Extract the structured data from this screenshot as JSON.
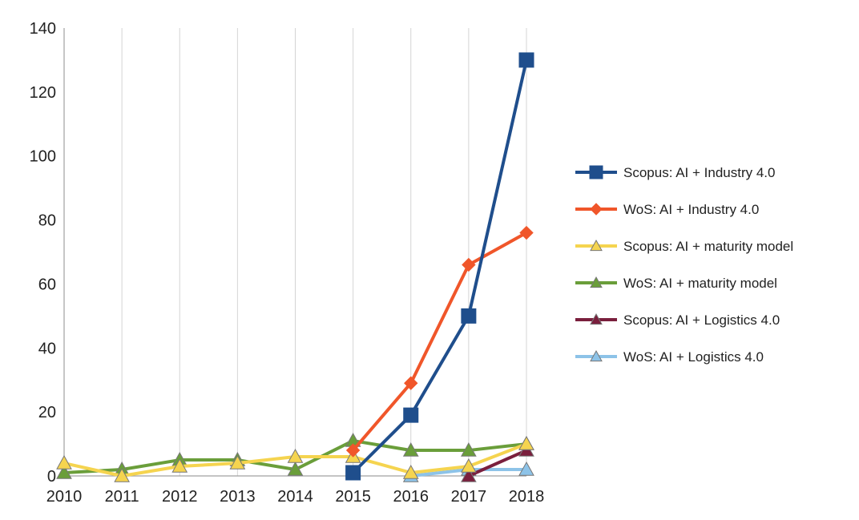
{
  "chart_data": {
    "type": "line",
    "title": "",
    "xlabel": "",
    "ylabel": "",
    "x": [
      "2010",
      "2011",
      "2012",
      "2013",
      "2014",
      "2015",
      "2016",
      "2017",
      "2018"
    ],
    "ylim": [
      0,
      140
    ],
    "yticks": [
      0,
      20,
      40,
      60,
      80,
      100,
      120,
      140
    ],
    "grid": {
      "vertical": true,
      "horizontal": false
    },
    "legend_position": "right",
    "series": [
      {
        "name": "Scopus: AI + Industry 4.0",
        "color": "#1F4E8C",
        "marker": "square",
        "values": [
          null,
          null,
          null,
          null,
          null,
          1,
          19,
          50,
          130
        ]
      },
      {
        "name": "WoS: AI + Industry 4.0",
        "color": "#F0562A",
        "marker": "diamond",
        "values": [
          null,
          null,
          null,
          null,
          null,
          8,
          29,
          66,
          76
        ]
      },
      {
        "name": "Scopus: AI + maturity model",
        "color": "#F5D44F",
        "marker": "triangle",
        "values": [
          4,
          0,
          3,
          4,
          6,
          6,
          1,
          3,
          10
        ]
      },
      {
        "name": "WoS: AI + maturity model",
        "color": "#6A9E3A",
        "marker": "triangle",
        "values": [
          1,
          2,
          5,
          5,
          2,
          11,
          8,
          8,
          10
        ]
      },
      {
        "name": "Scopus: AI + Logistics 4.0",
        "color": "#7A1F3D",
        "marker": "triangle",
        "values": [
          null,
          null,
          null,
          null,
          null,
          null,
          null,
          0,
          8
        ]
      },
      {
        "name": "WoS: AI + Logistics 4.0",
        "color": "#8DC3E8",
        "marker": "triangle",
        "values": [
          null,
          null,
          null,
          null,
          null,
          null,
          0,
          2,
          2
        ]
      }
    ]
  }
}
